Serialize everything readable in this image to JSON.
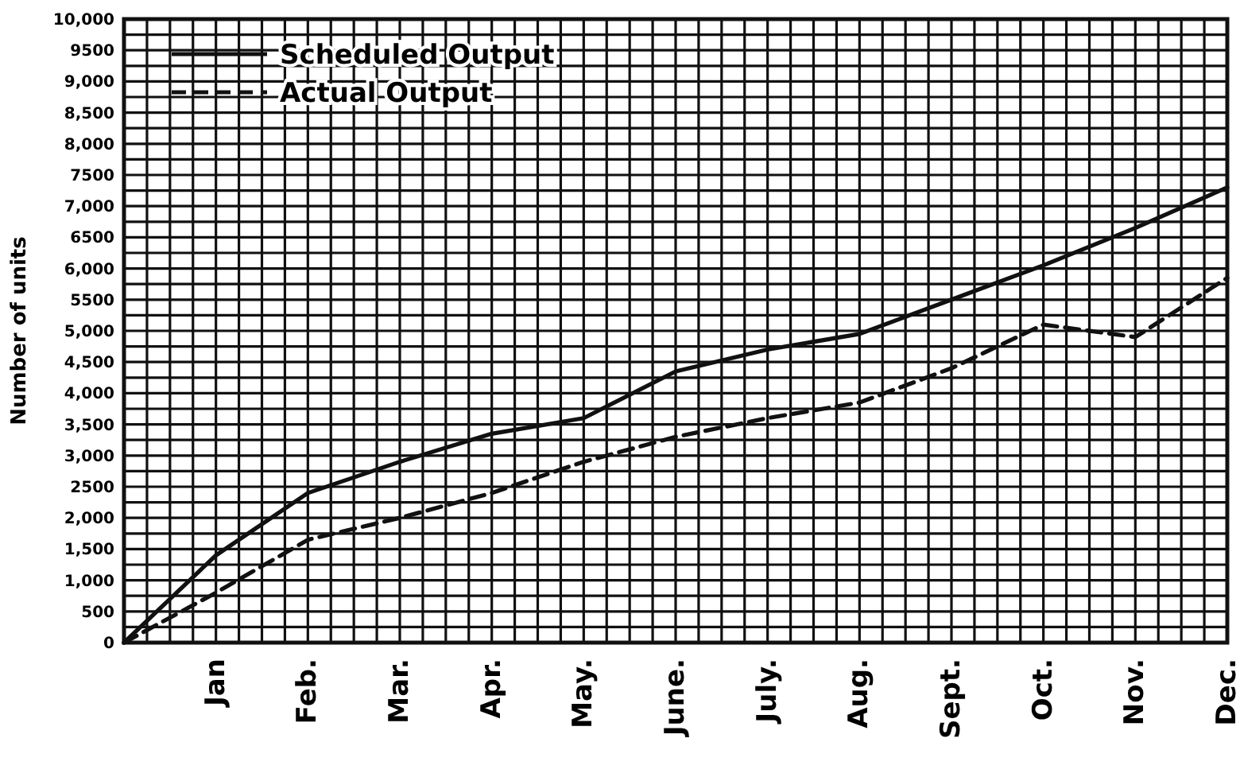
{
  "chart_data": {
    "type": "line",
    "ylabel": "Number of units",
    "categories": [
      null,
      "Jan",
      "Feb.",
      "Mar.",
      "Apr.",
      "May.",
      "June.",
      "July.",
      "Aug.",
      "Sept.",
      "Oct.",
      "Nov.",
      "Dec."
    ],
    "series": [
      {
        "name": "Scheduled Output",
        "color": "#111111",
        "line_style": "solid",
        "values": [
          0,
          1400,
          2400,
          2900,
          3350,
          3600,
          4350,
          4700,
          4950,
          5500,
          6050,
          6650,
          7300
        ]
      },
      {
        "name": "Actual Output",
        "color": "#111111",
        "line_style": "dashed",
        "values": [
          0,
          800,
          1650,
          2000,
          2400,
          2900,
          3300,
          3600,
          3850,
          4400,
          5100,
          4900,
          5850
        ]
      }
    ],
    "ylim": [
      0,
      10000
    ],
    "yticks": [
      0,
      {
        "value": 250,
        "label": null
      },
      {
        "value": 500,
        "label": "500"
      },
      {
        "value": 750,
        "label": null
      },
      {
        "value": 1000,
        "label": "1,000"
      },
      {
        "value": 1250,
        "label": null
      },
      {
        "value": 1500,
        "label": "1,500"
      },
      {
        "value": 1750,
        "label": null
      },
      {
        "value": 2000,
        "label": "2,000"
      },
      {
        "value": 2250,
        "label": null
      },
      {
        "value": 2500,
        "label": "2500"
      },
      {
        "value": 2750,
        "label": null
      },
      {
        "value": 3000,
        "label": "3,000"
      },
      {
        "value": 3250,
        "label": null
      },
      {
        "value": 3500,
        "label": "3,500"
      },
      {
        "value": 3750,
        "label": null
      },
      {
        "value": 4000,
        "label": "4,000"
      },
      {
        "value": 4250,
        "label": null
      },
      {
        "value": 4500,
        "label": "4,500"
      },
      {
        "value": 4750,
        "label": null
      },
      {
        "value": 5000,
        "label": "5,000"
      },
      {
        "value": 5250,
        "label": null
      },
      {
        "value": 5500,
        "label": "5500"
      },
      {
        "value": 5750,
        "label": null
      },
      {
        "value": 6000,
        "label": "6,000"
      },
      {
        "value": 6250,
        "label": null
      },
      {
        "value": 6500,
        "label": "6500"
      },
      {
        "value": 6750,
        "label": null
      },
      {
        "value": 7000,
        "label": "7,000"
      },
      {
        "value": 7250,
        "label": null
      },
      {
        "value": 7500,
        "label": "7500"
      },
      {
        "value": 7750,
        "label": null
      },
      {
        "value": 8000,
        "label": "8,000"
      },
      {
        "value": 8250,
        "label": null
      },
      {
        "value": 8500,
        "label": "8,500"
      },
      {
        "value": 8750,
        "label": null
      },
      {
        "value": 9000,
        "label": "9,000"
      },
      {
        "value": 9250,
        "label": null
      },
      {
        "value": 9500,
        "label": "9500"
      },
      {
        "value": 9750,
        "label": null
      },
      {
        "value": 10000,
        "label": "10,000"
      }
    ],
    "grid": true,
    "legend": "top left",
    "marker": "none"
  }
}
